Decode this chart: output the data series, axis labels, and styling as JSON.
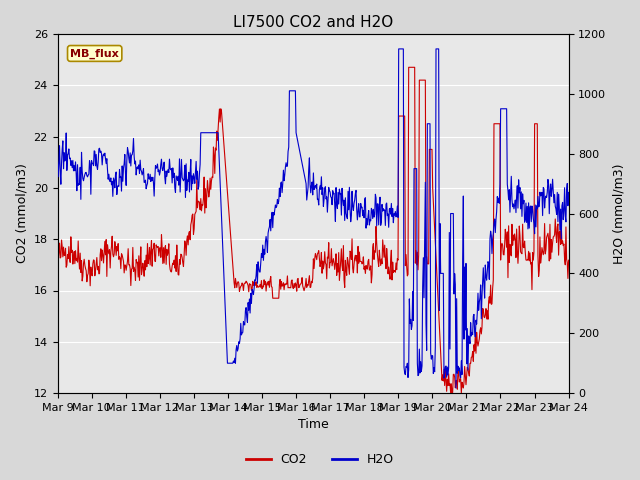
{
  "title": "LI7500 CO2 and H2O",
  "xlabel": "Time",
  "ylabel_left": "CO2 (mmol/m3)",
  "ylabel_right": "H2O (mmol/m3)",
  "ylim_left": [
    12,
    26
  ],
  "ylim_right": [
    0,
    1200
  ],
  "yticks_left": [
    12,
    14,
    16,
    18,
    20,
    22,
    24,
    26
  ],
  "yticks_right": [
    0,
    200,
    400,
    600,
    800,
    1000,
    1200
  ],
  "xtick_labels": [
    "Mar 9",
    "Mar 10",
    "Mar 11",
    "Mar 12",
    "Mar 13",
    "Mar 14",
    "Mar 15",
    "Mar 16",
    "Mar 17",
    "Mar 18",
    "Mar 19",
    "Mar 20",
    "Mar 21",
    "Mar 22",
    "Mar 23",
    "Mar 24"
  ],
  "co2_color": "#cc0000",
  "h2o_color": "#0000cc",
  "fig_facecolor": "#d8d8d8",
  "axes_bg": "#e8e8e8",
  "grid_color": "#ffffff",
  "annotation_text": "MB_flux",
  "annotation_bg": "#ffffcc",
  "annotation_border": "#aa8800",
  "annotation_color": "#880000",
  "legend_co2": "CO2",
  "legend_h2o": "H2O",
  "title_fontsize": 11,
  "label_fontsize": 9,
  "tick_fontsize": 8,
  "linewidth": 0.8
}
